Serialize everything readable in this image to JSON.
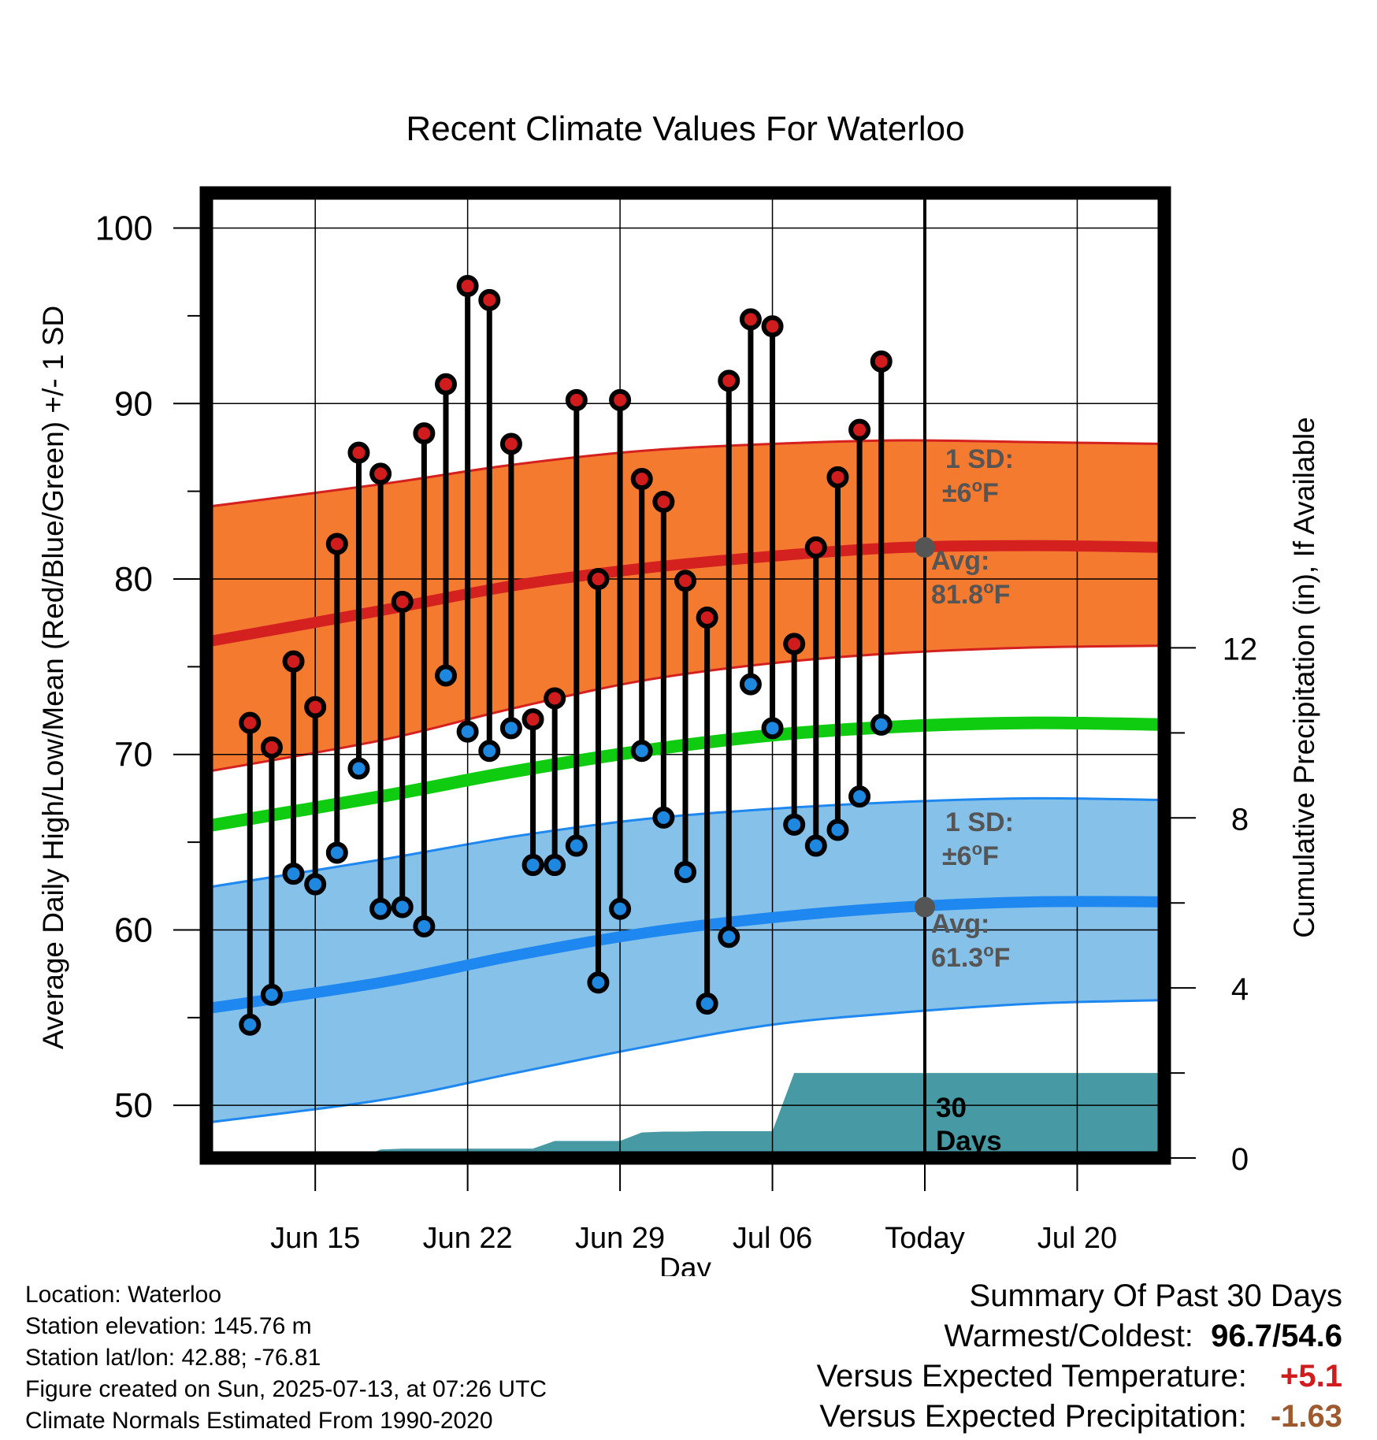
{
  "chart_data": {
    "type": "line",
    "title": "Recent Climate Values For Waterloo",
    "xlabel": "Day",
    "ylabel_left": "Average Daily High/Low/Mean (Red/Blue/Green) +/- 1 SD",
    "ylabel_right": "Cumulative Precipitation (in), If Available",
    "x_range": [
      "2025-06-10",
      "2025-07-24"
    ],
    "y_range_left": [
      47,
      102
    ],
    "y_range_right": [
      0,
      22.7
    ],
    "left_ticks": [
      50,
      60,
      70,
      80,
      90,
      100
    ],
    "right_ticks": [
      0,
      4,
      8,
      12
    ],
    "x_ticks": [
      {
        "date": "2025-06-15",
        "label": "Jun 15"
      },
      {
        "date": "2025-06-22",
        "label": "Jun 22"
      },
      {
        "date": "2025-06-29",
        "label": "Jun 29"
      },
      {
        "date": "2025-07-06",
        "label": "Jul 06"
      },
      {
        "date": "2025-07-13",
        "label": "Today"
      },
      {
        "date": "2025-07-20",
        "label": "Jul 20"
      }
    ],
    "today": "2025-07-13",
    "grid": true,
    "normals_dates": [
      "2025-06-12",
      "2025-06-18",
      "2025-06-24",
      "2025-06-30",
      "2025-07-06",
      "2025-07-12",
      "2025-07-18",
      "2025-07-23"
    ],
    "normal_high": [
      76.4,
      78.2,
      79.6,
      80.6,
      81.3,
      81.8,
      81.9,
      81.8
    ],
    "normal_high_plus_sd": [
      84.1,
      85.4,
      86.5,
      87.3,
      87.7,
      87.9,
      87.8,
      87.7
    ],
    "normal_high_minus_sd": [
      69.0,
      70.8,
      72.6,
      74.2,
      75.2,
      75.8,
      76.1,
      76.2
    ],
    "normal_mean": [
      65.9,
      67.6,
      69.0,
      70.2,
      71.1,
      71.6,
      71.8,
      71.7
    ],
    "normal_low": [
      55.5,
      57.0,
      58.5,
      59.8,
      60.7,
      61.3,
      61.6,
      61.6
    ],
    "normal_low_plus_sd": [
      62.4,
      64.0,
      65.3,
      66.3,
      66.9,
      67.3,
      67.5,
      67.4
    ],
    "normal_low_minus_sd": [
      49.0,
      50.3,
      51.8,
      53.3,
      54.6,
      55.3,
      55.8,
      56.0
    ],
    "series": [
      {
        "name": "High",
        "dates": [
          "2025-06-12",
          "2025-06-13",
          "2025-06-14",
          "2025-06-15",
          "2025-06-16",
          "2025-06-17",
          "2025-06-18",
          "2025-06-19",
          "2025-06-20",
          "2025-06-21",
          "2025-06-22",
          "2025-06-23",
          "2025-06-24",
          "2025-06-25",
          "2025-06-26",
          "2025-06-27",
          "2025-06-28",
          "2025-06-29",
          "2025-06-30",
          "2025-07-01",
          "2025-07-02",
          "2025-07-03",
          "2025-07-04",
          "2025-07-05",
          "2025-07-06",
          "2025-07-07",
          "2025-07-08",
          "2025-07-09",
          "2025-07-10",
          "2025-07-11",
          "2025-07-12"
        ],
        "values": [
          71.8,
          70.4,
          75.3,
          72.7,
          82.0,
          87.2,
          86.0,
          78.7,
          88.3,
          91.1,
          96.7,
          95.9,
          87.7,
          72.0,
          73.2,
          90.2,
          80.0,
          90.2,
          85.7,
          84.4,
          79.9,
          77.8,
          91.3,
          94.8,
          94.4,
          76.3,
          81.8,
          85.8,
          88.5,
          92.4,
          null
        ]
      },
      {
        "name": "Low",
        "dates": [
          "2025-06-12",
          "2025-06-13",
          "2025-06-14",
          "2025-06-15",
          "2025-06-16",
          "2025-06-17",
          "2025-06-18",
          "2025-06-19",
          "2025-06-20",
          "2025-06-21",
          "2025-06-22",
          "2025-06-23",
          "2025-06-24",
          "2025-06-25",
          "2025-06-26",
          "2025-06-27",
          "2025-06-28",
          "2025-06-29",
          "2025-06-30",
          "2025-07-01",
          "2025-07-02",
          "2025-07-03",
          "2025-07-04",
          "2025-07-05",
          "2025-07-06",
          "2025-07-07",
          "2025-07-08",
          "2025-07-09",
          "2025-07-10",
          "2025-07-11",
          "2025-07-12"
        ],
        "values": [
          54.6,
          56.3,
          63.2,
          62.6,
          64.4,
          69.2,
          61.2,
          61.3,
          60.2,
          74.5,
          71.3,
          70.2,
          71.5,
          63.7,
          63.7,
          64.8,
          57.0,
          61.2,
          70.2,
          66.4,
          63.3,
          55.8,
          59.6,
          74.0,
          71.5,
          66.0,
          64.8,
          65.7,
          67.6,
          71.7,
          null
        ]
      }
    ],
    "cumulative_precip": {
      "dates": [
        "2025-06-10",
        "2025-06-16",
        "2025-06-17",
        "2025-06-18",
        "2025-06-19",
        "2025-06-20",
        "2025-06-21",
        "2025-06-22",
        "2025-06-23",
        "2025-06-24",
        "2025-06-25",
        "2025-06-26",
        "2025-06-27",
        "2025-06-28",
        "2025-06-29",
        "2025-06-30",
        "2025-07-01",
        "2025-07-02",
        "2025-07-03",
        "2025-07-04",
        "2025-07-05",
        "2025-07-06",
        "2025-07-07",
        "2025-07-24"
      ],
      "values": [
        0.0,
        0.0,
        0.0,
        0.2,
        0.22,
        0.22,
        0.22,
        0.22,
        0.22,
        0.22,
        0.22,
        0.4,
        0.4,
        0.4,
        0.4,
        0.6,
        0.62,
        0.62,
        0.63,
        0.63,
        0.63,
        0.63,
        2.0,
        2.0
      ]
    },
    "annotations": {
      "high_sd_label": "1 SD:",
      "high_sd_value": "±6",
      "high_avg_label": "Avg:",
      "high_avg_value": "81.8",
      "high_avg_value_num": 81.8,
      "low_sd_label": "1 SD:",
      "low_sd_value": "±6",
      "low_avg_label": "Avg:",
      "low_avg_value": "61.3",
      "low_avg_value_num": 61.3,
      "degree_mark": "o",
      "unit": "F",
      "window_label_1": "30",
      "window_label_2": "Days"
    },
    "colors": {
      "high_band": "#f47a2f",
      "high_line": "#d42120",
      "mean_line": "#10cc10",
      "low_band": "#85c1e8",
      "low_line": "#1e88f0",
      "precip_fill": "#4799a3",
      "high_marker": "#d01c1c",
      "low_marker": "#1e88e0",
      "avg_dot": "#555555"
    }
  },
  "footer": {
    "location": "Location: Waterloo",
    "elevation": "Station elevation: 145.76 m",
    "latlon": "Station lat/lon: 42.88; -76.81",
    "created": "Figure created on Sun, 2025-07-13, at 07:26 UTC",
    "normals": "Climate Normals Estimated From 1990-2020"
  },
  "summary": {
    "title": "Summary Of Past 30 Days",
    "warmest_label": "Warmest/Coldest:",
    "warmest": "96.7",
    "separator": "/",
    "coldest": "54.6",
    "temp_label": "Versus Expected Temperature:",
    "temp_value": "+5.1",
    "precip_label": "Versus Expected Precipitation:",
    "precip_value": "-1.63"
  }
}
